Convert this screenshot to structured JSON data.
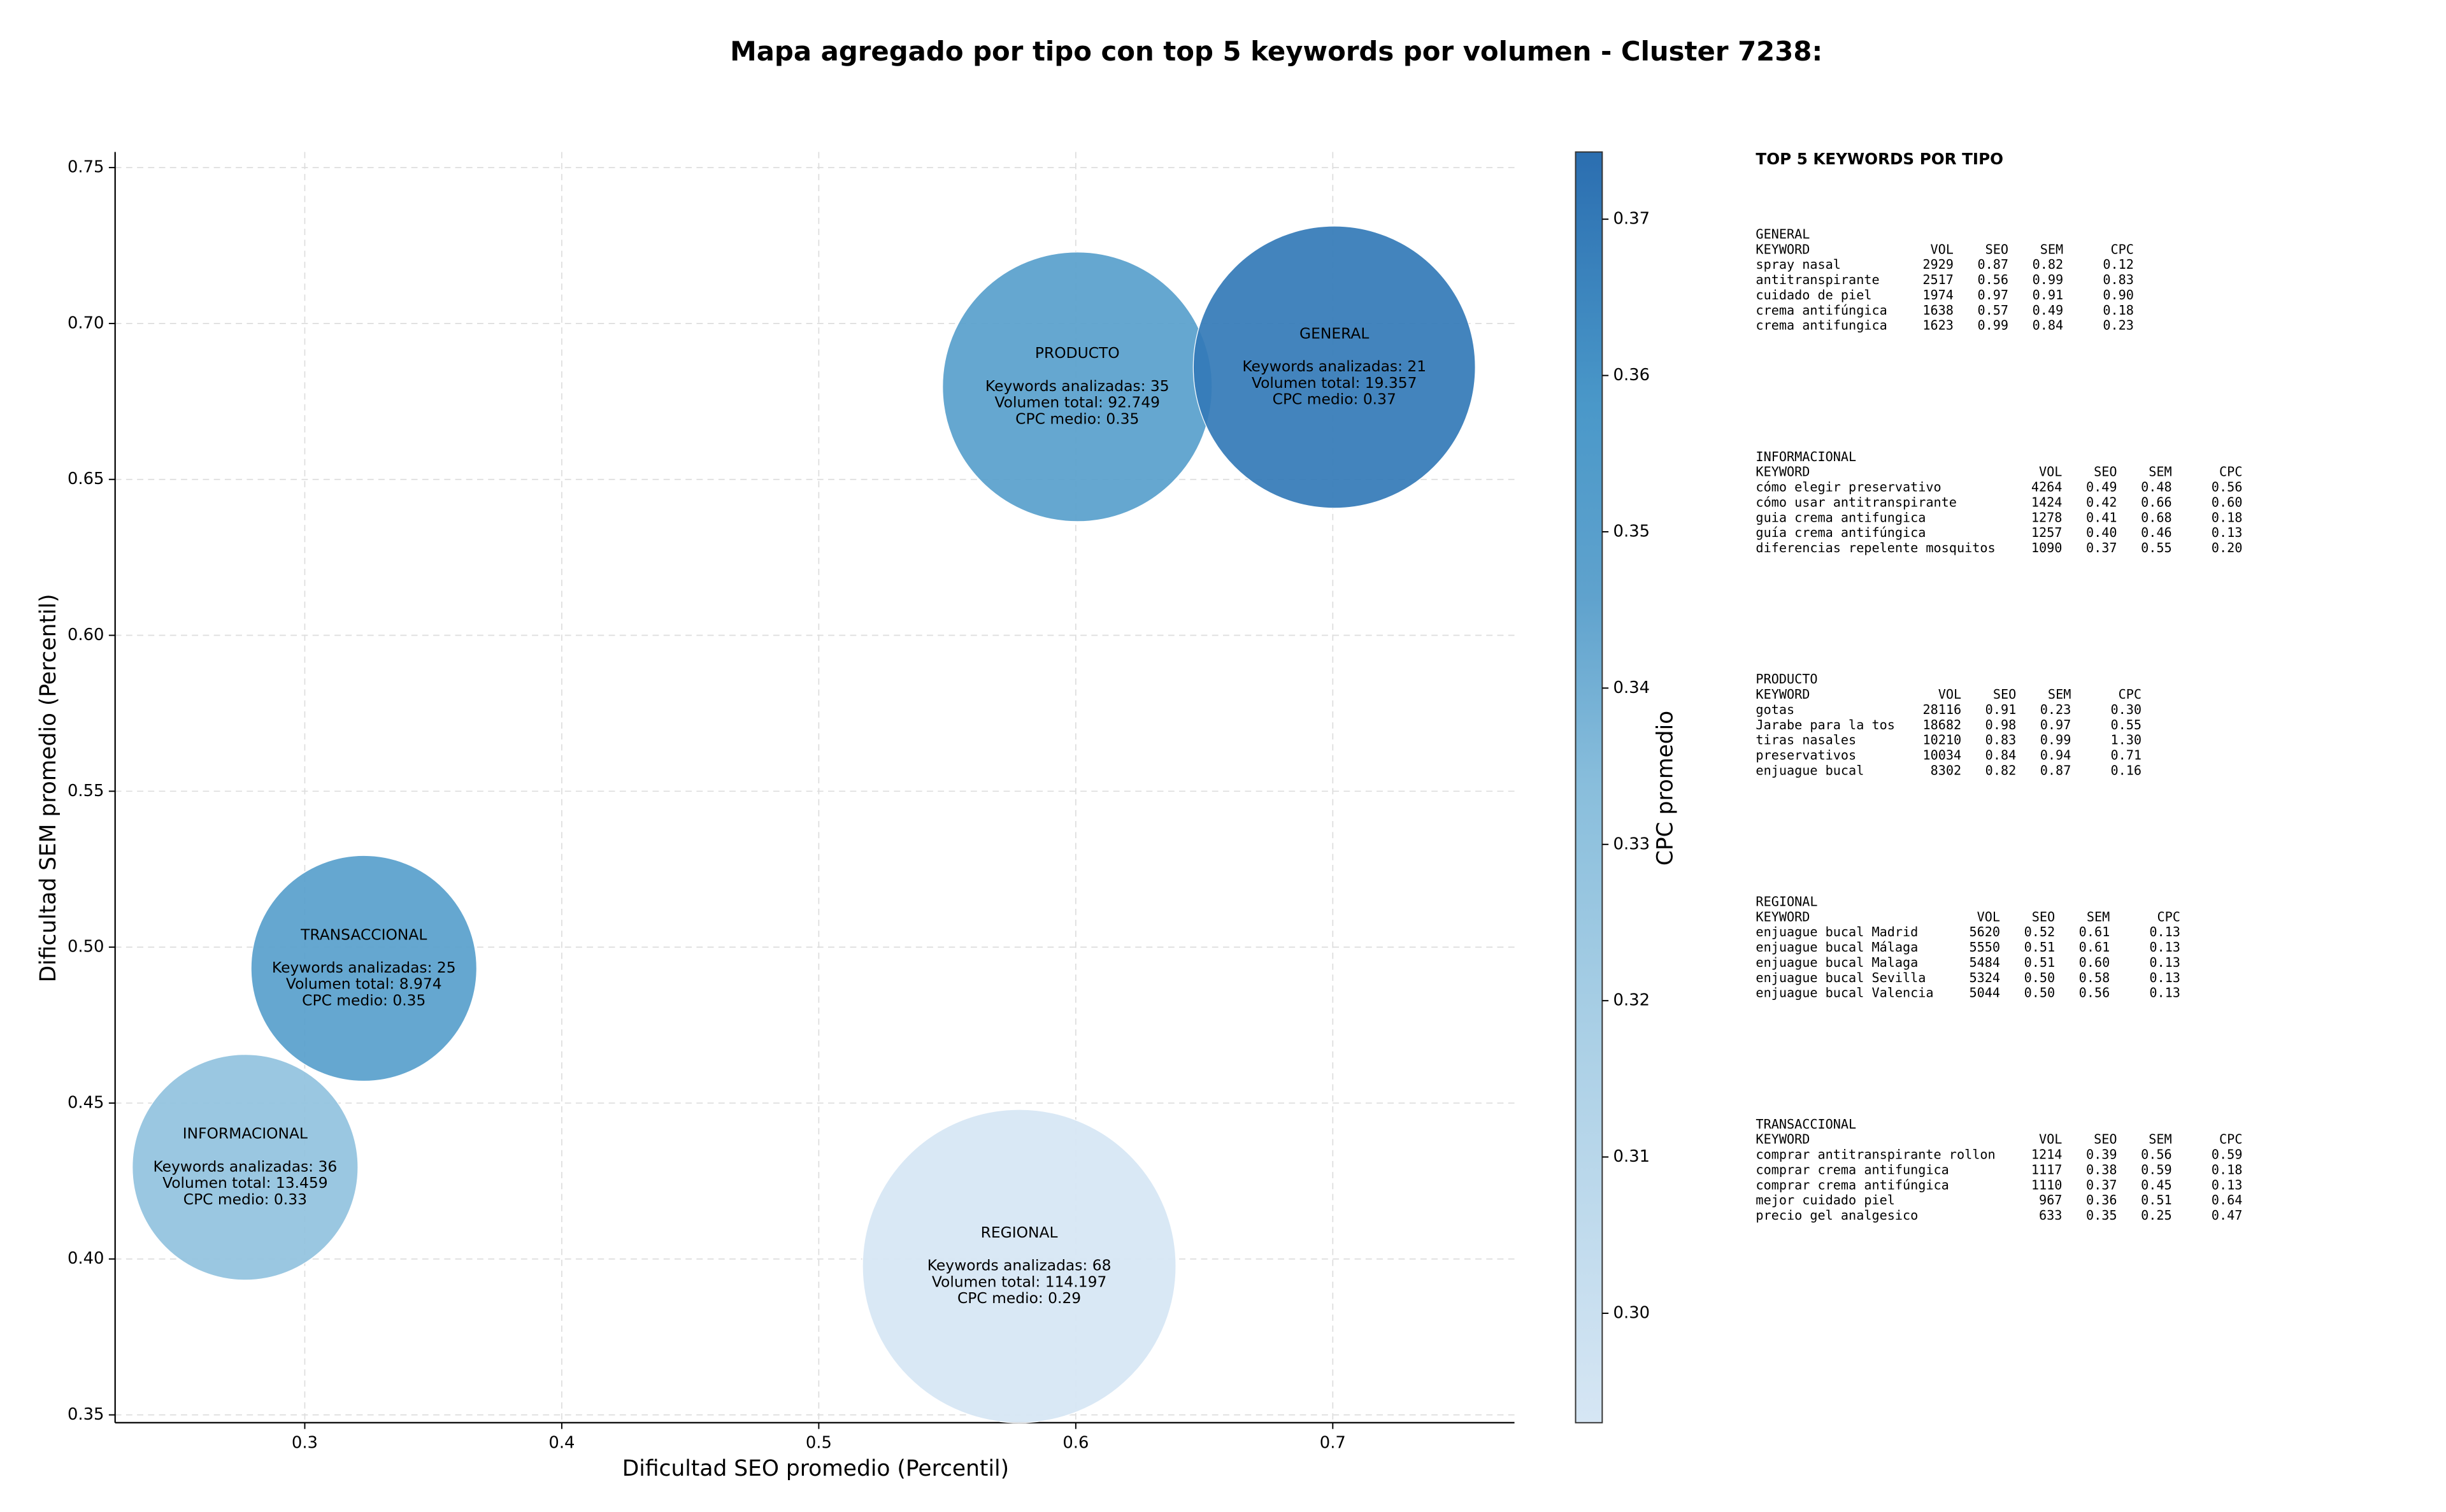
{
  "chart_data": {
    "type": "bubble",
    "title": "Mapa agregado por tipo con top 5 keywords por volumen - Cluster 7238:",
    "xlabel": "Dificultad SEO promedio (Percentil)",
    "ylabel": "Dificultad SEM promedio (Percentil)",
    "xlim": [
      0.2262,
      0.7707
    ],
    "ylim": [
      0.3475,
      0.755
    ],
    "xticks": [
      0.3,
      0.4,
      0.5,
      0.6,
      0.7
    ],
    "yticks": [
      0.35,
      {
        "value": 0.4,
        "label": "0.40"
      },
      0.45,
      {
        "value": 0.5,
        "label": "0.50"
      },
      0.55,
      {
        "value": 0.6,
        "label": "0.60"
      },
      0.65,
      {
        "value": 0.7,
        "label": "0.70"
      },
      0.75
    ],
    "grid": true,
    "categories": [
      "PRODUCTO",
      "GENERAL",
      "TRANSACCIONAL",
      "INFORMACIONAL",
      "REGIONAL"
    ],
    "x": [
      0.6006,
      0.7006,
      0.323,
      0.2768,
      0.578
    ],
    "y": [
      0.6797,
      0.686,
      0.4932,
      0.4294,
      0.3977
    ],
    "cpc": [
      0.35,
      0.37,
      0.35,
      0.33,
      0.29
    ],
    "bubble_text": [
      [
        "Keywords analizadas: 35",
        "Volumen total: 92.749",
        "CPC medio: 0.35"
      ],
      [
        "Keywords analizadas: 21",
        "Volumen total: 19.357",
        "CPC medio: 0.37"
      ],
      [
        "Keywords analizadas: 25",
        "Volumen total: 8.974",
        "CPC medio: 0.35"
      ],
      [
        "Keywords analizadas: 36",
        "Volumen total: 13.459",
        "CPC medio: 0.33"
      ],
      [
        "Keywords analizadas: 68",
        "Volumen total: 114.197",
        "CPC medio: 0.29"
      ]
    ],
    "colorbar": {
      "label": "CPC promedio",
      "lim": [
        0.293,
        0.3743
      ],
      "ticks": [
        {
          "value": 0.3,
          "label": "0.30"
        },
        0.31,
        0.32,
        0.33,
        0.34,
        0.35,
        0.36,
        0.37
      ]
    }
  },
  "side_panel": {
    "title": "TOP 5 KEYWORDS POR TIPO",
    "groups": [
      {
        "name": "GENERAL",
        "header": [
          "KEYWORD",
          "VOL",
          "SEO",
          "SEM",
          "CPC"
        ],
        "rows": [
          [
            "spray nasal",
            "2929",
            "0.87",
            "0.82",
            "0.12"
          ],
          [
            "antitranspirante",
            "2517",
            "0.56",
            "0.99",
            "0.83"
          ],
          [
            "cuidado de piel",
            "1974",
            "0.97",
            "0.91",
            "0.90"
          ],
          [
            "crema antifúngica",
            "1638",
            "0.57",
            "0.49",
            "0.18"
          ],
          [
            "crema antifungica",
            "1623",
            "0.99",
            "0.84",
            "0.23"
          ]
        ]
      },
      {
        "name": "INFORMACIONAL",
        "header": [
          "KEYWORD",
          "VOL",
          "SEO",
          "SEM",
          "CPC"
        ],
        "rows": [
          [
            "cómo elegir preservativo",
            "4264",
            "0.49",
            "0.48",
            "0.56"
          ],
          [
            "cómo usar antitranspirante",
            "1424",
            "0.42",
            "0.66",
            "0.60"
          ],
          [
            "guia crema antifungica",
            "1278",
            "0.41",
            "0.68",
            "0.18"
          ],
          [
            "guía crema antifúngica",
            "1257",
            "0.40",
            "0.46",
            "0.13"
          ],
          [
            "diferencias repelente mosquitos",
            "1090",
            "0.37",
            "0.55",
            "0.20"
          ]
        ]
      },
      {
        "name": "PRODUCTO",
        "header": [
          "KEYWORD",
          "VOL",
          "SEO",
          "SEM",
          "CPC"
        ],
        "rows": [
          [
            "gotas",
            "28116",
            "0.91",
            "0.23",
            "0.30"
          ],
          [
            "Jarabe para la tos",
            "18682",
            "0.98",
            "0.97",
            "0.55"
          ],
          [
            "tiras nasales",
            "10210",
            "0.83",
            "0.99",
            "1.30"
          ],
          [
            "preservativos",
            "10034",
            "0.84",
            "0.94",
            "0.71"
          ],
          [
            "enjuague bucal",
            "8302",
            "0.82",
            "0.87",
            "0.16"
          ]
        ]
      },
      {
        "name": "REGIONAL",
        "header": [
          "KEYWORD",
          "VOL",
          "SEO",
          "SEM",
          "CPC"
        ],
        "rows": [
          [
            "enjuague bucal Madrid",
            "5620",
            "0.52",
            "0.61",
            "0.13"
          ],
          [
            "enjuague bucal Málaga",
            "5550",
            "0.51",
            "0.61",
            "0.13"
          ],
          [
            "enjuague bucal Malaga",
            "5484",
            "0.51",
            "0.60",
            "0.13"
          ],
          [
            "enjuague bucal Sevilla",
            "5324",
            "0.50",
            "0.58",
            "0.13"
          ],
          [
            "enjuague bucal Valencia",
            "5044",
            "0.50",
            "0.56",
            "0.13"
          ]
        ]
      },
      {
        "name": "TRANSACCIONAL",
        "header": [
          "KEYWORD",
          "VOL",
          "SEO",
          "SEM",
          "CPC"
        ],
        "rows": [
          [
            "comprar antitranspirante rollon",
            "1214",
            "0.39",
            "0.56",
            "0.59"
          ],
          [
            "comprar crema antifungica",
            "1117",
            "0.38",
            "0.59",
            "0.18"
          ],
          [
            "comprar crema antifúngica",
            "1110",
            "0.37",
            "0.45",
            "0.13"
          ],
          [
            "mejor cuidado piel",
            "967",
            "0.36",
            "0.51",
            "0.64"
          ],
          [
            "precio gel analgesico",
            "633",
            "0.35",
            "0.25",
            "0.47"
          ]
        ]
      }
    ]
  }
}
